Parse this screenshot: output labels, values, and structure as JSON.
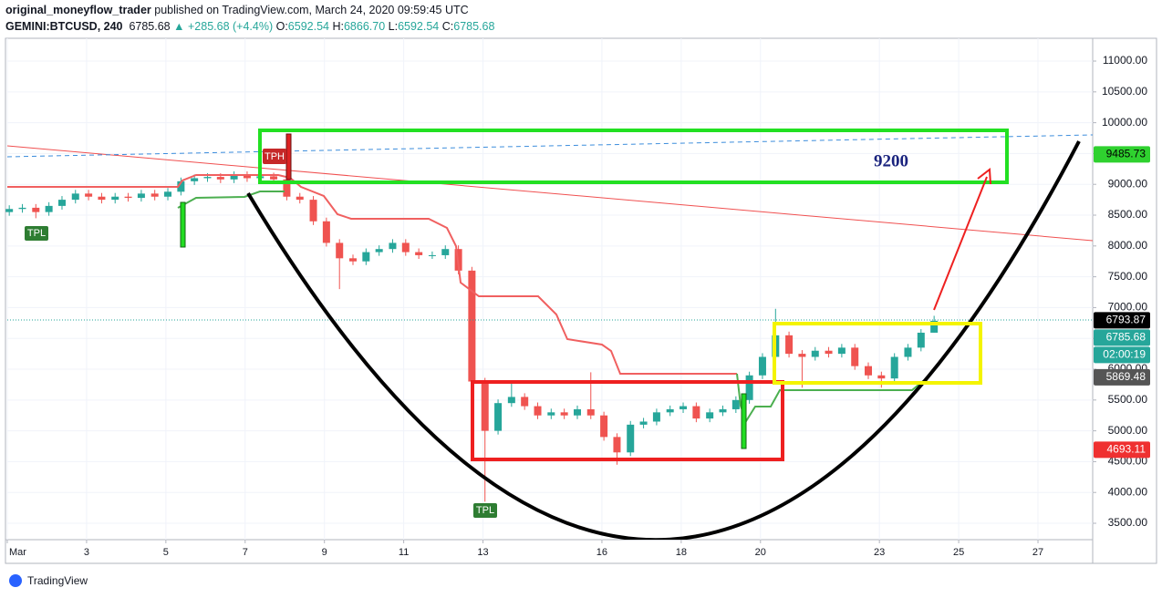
{
  "header": {
    "publisher": "original_moneyflow_trader",
    "published": " published on TradingView.com, March 24, 2020 09:59:45 UTC",
    "symbol": "GEMINI:BTCUSD, 240",
    "last": "6785.68",
    "change": "+285.68 (+4.4%)",
    "ohlc": [
      {
        "label": "O:",
        "value": "6592.54"
      },
      {
        "label": "H:",
        "value": "6866.70"
      },
      {
        "label": "L:",
        "value": "6592.54"
      },
      {
        "label": "C:",
        "value": "6785.68"
      }
    ]
  },
  "annotations": {
    "target": "9200",
    "tph": "TPH",
    "tpl": [
      "TPL",
      "TPL"
    ]
  },
  "footer": "TradingView",
  "chart_data": {
    "type": "candlestick",
    "up_color": "#26a69a",
    "down_color": "#ef5350",
    "grid": true,
    "xlim": [
      1,
      28.38
    ],
    "ylim": [
      3234,
      11370
    ],
    "xticks": [
      {
        "value": 1,
        "label": "Mar"
      },
      3,
      5,
      7,
      9,
      11,
      13,
      16,
      18,
      20,
      23,
      25,
      27
    ],
    "yticks": [
      {
        "value": 3500,
        "label": "3500.00"
      },
      {
        "value": 4000,
        "label": "4000.00"
      },
      {
        "value": 4500,
        "label": "4500.00"
      },
      {
        "value": 5000,
        "label": "5000.00"
      },
      {
        "value": 5500,
        "label": "5500.00"
      },
      {
        "value": 6000,
        "label": "6000.00"
      },
      {
        "value": 6500,
        "label": "6500.00"
      },
      {
        "value": 7000,
        "label": "7000.00"
      },
      {
        "value": 7500,
        "label": "7500.00"
      },
      {
        "value": 8000,
        "label": "8000.00"
      },
      {
        "value": 8500,
        "label": "8500.00"
      },
      {
        "value": 9000,
        "label": "9000.00"
      },
      {
        "value": 9500,
        "label": "9500.00"
      },
      {
        "value": 10000,
        "label": "10000.00"
      },
      {
        "value": 10500,
        "label": "10500.00"
      },
      {
        "value": 11000,
        "label": "11000.00"
      }
    ],
    "x": [
      1.05,
      1.38,
      1.72,
      2.05,
      2.38,
      2.72,
      3.05,
      3.38,
      3.72,
      4.05,
      4.38,
      4.72,
      5.05,
      5.38,
      5.72,
      6.05,
      6.38,
      6.72,
      7.05,
      7.38,
      7.72,
      8.05,
      8.38,
      8.72,
      9.05,
      9.38,
      9.72,
      10.05,
      10.38,
      10.72,
      11.05,
      11.38,
      11.72,
      12.05,
      12.38,
      12.72,
      13.05,
      13.38,
      13.72,
      14.05,
      14.38,
      14.72,
      15.05,
      15.38,
      15.72,
      16.05,
      16.38,
      16.72,
      17.05,
      17.38,
      17.72,
      18.05,
      18.38,
      18.72,
      19.05,
      19.38,
      19.72,
      20.05,
      20.38,
      20.72,
      21.05,
      21.38,
      21.72,
      22.05,
      22.38,
      22.72,
      23.05,
      23.38,
      23.72,
      24.05,
      24.38
    ],
    "open": [
      8550,
      8600,
      8620,
      8550,
      8650,
      8750,
      8850,
      8800,
      8750,
      8800,
      8780,
      8850,
      8800,
      8880,
      9050,
      9100,
      9120,
      9080,
      9150,
      9100,
      9130,
      9080,
      8800,
      8750,
      8400,
      8050,
      7800,
      7750,
      7900,
      7950,
      8050,
      7900,
      7850,
      7850,
      7950,
      7600,
      5800,
      5000,
      5450,
      5550,
      5400,
      5250,
      5300,
      5250,
      5350,
      5250,
      4900,
      4650,
      5100,
      5150,
      5300,
      5350,
      5400,
      5200,
      5300,
      5350,
      5500,
      5900,
      6200,
      6550,
      6250,
      6200,
      6300,
      6250,
      6350,
      6050,
      5900,
      5850,
      6200,
      6350,
      6592.54
    ],
    "high": [
      8660,
      8680,
      8680,
      8710,
      8810,
      8910,
      8910,
      8860,
      8860,
      8860,
      8910,
      8910,
      8940,
      9110,
      9160,
      9180,
      9180,
      9210,
      9210,
      9190,
      9190,
      9140,
      8860,
      8810,
      8460,
      8110,
      7860,
      7960,
      8010,
      8110,
      8110,
      7960,
      7910,
      8010,
      8010,
      7660,
      5860,
      5510,
      5800,
      5610,
      5460,
      5360,
      5360,
      5410,
      5950,
      5310,
      4960,
      5160,
      5210,
      5360,
      5410,
      5460,
      5460,
      5360,
      5410,
      5560,
      5960,
      6260,
      6980,
      6610,
      6310,
      6360,
      6360,
      6410,
      6410,
      6110,
      5960,
      6260,
      6410,
      6650,
      6866.7
    ],
    "low": [
      8490,
      8540,
      8450,
      8490,
      8590,
      8690,
      8740,
      8690,
      8690,
      8720,
      8720,
      8740,
      8740,
      8820,
      8990,
      9040,
      9020,
      9020,
      9040,
      9040,
      9020,
      8740,
      8690,
      8340,
      7990,
      7300,
      7690,
      7690,
      7840,
      7890,
      7840,
      7790,
      7790,
      7790,
      7540,
      5550,
      3850,
      4940,
      5390,
      5340,
      5190,
      5190,
      5190,
      5190,
      5190,
      4840,
      4450,
      4590,
      5040,
      5090,
      5240,
      5290,
      5140,
      5140,
      5240,
      5290,
      5440,
      5840,
      6140,
      6190,
      5700,
      6140,
      6190,
      6190,
      5990,
      5840,
      5700,
      5790,
      6140,
      6290,
      6592.54
    ],
    "close": [
      8600,
      8620,
      8550,
      8650,
      8750,
      8850,
      8800,
      8750,
      8800,
      8780,
      8850,
      8800,
      8880,
      9050,
      9100,
      9120,
      9080,
      9150,
      9100,
      9130,
      9080,
      8800,
      8750,
      8400,
      8050,
      7800,
      7750,
      7900,
      7950,
      8050,
      7900,
      7850,
      7850,
      7950,
      7600,
      5800,
      5000,
      5450,
      5550,
      5400,
      5250,
      5300,
      5250,
      5350,
      5250,
      4900,
      4650,
      5100,
      5150,
      5300,
      5350,
      5400,
      5200,
      5300,
      5350,
      5500,
      5900,
      6200,
      6550,
      6250,
      6200,
      6300,
      6250,
      6350,
      6050,
      5900,
      5850,
      6200,
      6350,
      6592.54,
      6785.68
    ],
    "price_labels": [
      {
        "value": 9485.73,
        "color": "#2fd12f",
        "text_color": "#000000"
      },
      {
        "value": 6793.87,
        "color": "#000000",
        "text_color": "#ffffff"
      },
      {
        "value": 6785.68,
        "color": "#26a69a",
        "text_color": "#ffffff",
        "sublabel": "02:00:19"
      },
      {
        "value": 5869.48,
        "color": "#555555",
        "text_color": "#ffffff"
      },
      {
        "value": 4693.11,
        "color": "#ef3030",
        "text_color": "#ffffff"
      }
    ]
  }
}
